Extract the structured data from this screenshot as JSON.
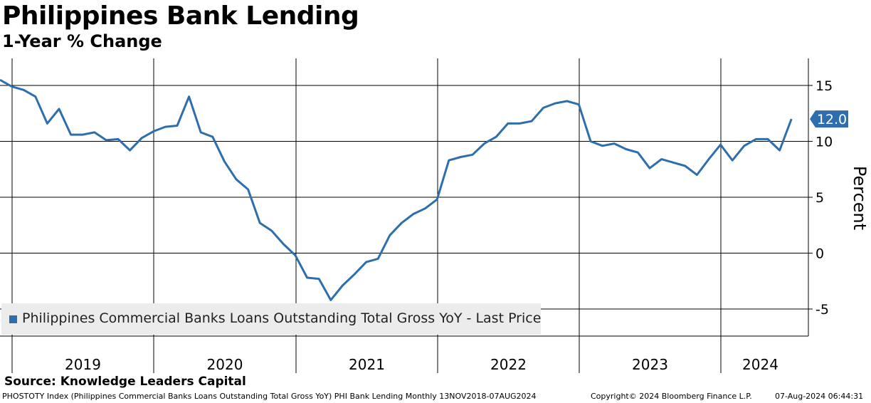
{
  "header": {
    "title": "Philippines Bank Lending",
    "subtitle": "1-Year % Change"
  },
  "colors": {
    "series": "#2f6ead",
    "grid": "#000000",
    "legend_bg": "#ececec"
  },
  "chart_data": {
    "type": "line",
    "ylabel": "Percent",
    "ylim": [
      -7.3,
      17.5
    ],
    "yticks": [
      15,
      10,
      5,
      0,
      -5
    ],
    "ytick_labels": [
      "15",
      "10",
      "5",
      "0",
      "-5"
    ],
    "year_labels": [
      "2019",
      "2020",
      "2021",
      "2022",
      "2023",
      "2024"
    ],
    "grid": true,
    "legend_position": "bottom-left",
    "series": [
      {
        "name": "Philippines Commercial Banks Loans Outstanding Total Gross YoY - Last Price",
        "x": [
          "2018-11",
          "2018-12",
          "2019-01",
          "2019-02",
          "2019-03",
          "2019-04",
          "2019-05",
          "2019-06",
          "2019-07",
          "2019-08",
          "2019-09",
          "2019-10",
          "2019-11",
          "2019-12",
          "2020-01",
          "2020-02",
          "2020-03",
          "2020-04",
          "2020-05",
          "2020-06",
          "2020-07",
          "2020-08",
          "2020-09",
          "2020-10",
          "2020-11",
          "2020-12",
          "2021-01",
          "2021-02",
          "2021-03",
          "2021-04",
          "2021-05",
          "2021-06",
          "2021-07",
          "2021-08",
          "2021-09",
          "2021-10",
          "2021-11",
          "2021-12",
          "2022-01",
          "2022-02",
          "2022-03",
          "2022-04",
          "2022-05",
          "2022-06",
          "2022-07",
          "2022-08",
          "2022-09",
          "2022-10",
          "2022-11",
          "2022-12",
          "2023-01",
          "2023-02",
          "2023-03",
          "2023-04",
          "2023-05",
          "2023-06",
          "2023-07",
          "2023-08",
          "2023-09",
          "2023-10",
          "2023-11",
          "2023-12",
          "2024-01",
          "2024-02",
          "2024-03",
          "2024-04",
          "2024-05",
          "2024-06"
        ],
        "values": [
          15.5,
          14.9,
          14.6,
          14.0,
          11.6,
          12.9,
          10.6,
          10.6,
          10.8,
          10.1,
          10.2,
          9.2,
          10.3,
          10.9,
          11.3,
          11.4,
          14.0,
          10.8,
          10.4,
          8.2,
          6.6,
          5.7,
          2.7,
          2.0,
          0.8,
          -0.2,
          -2.2,
          -2.3,
          -4.2,
          -2.9,
          -1.9,
          -0.8,
          -0.5,
          1.6,
          2.7,
          3.5,
          4.0,
          4.8,
          8.3,
          8.6,
          8.8,
          9.8,
          10.4,
          11.6,
          11.6,
          11.8,
          13.0,
          13.4,
          13.6,
          13.3,
          10.0,
          9.6,
          9.8,
          9.3,
          9.0,
          7.6,
          8.4,
          8.1,
          7.8,
          7.0,
          8.4,
          9.7,
          8.3,
          9.6,
          10.2,
          10.2,
          9.2,
          12.0
        ]
      }
    ],
    "last_value_label": "12.0"
  },
  "source": "Source: Knowledge Leaders Capital",
  "footer": {
    "left": "PHOSTOTY Index (Philippines Commercial Banks Loans Outstanding Total Gross YoY) PHI Bank Lending  Monthly 13NOV2018-07AUG2024",
    "center": "Copyright© 2024 Bloomberg Finance L.P.",
    "right": "07-Aug-2024 06:44:31"
  }
}
